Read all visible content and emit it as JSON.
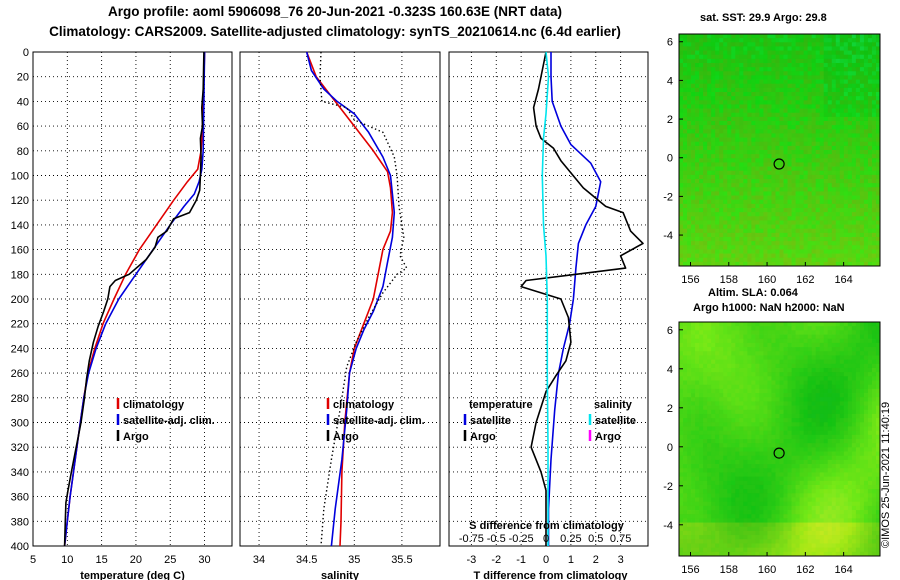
{
  "header": {
    "line1": "Argo profile: aoml 5906098_76 20-Jun-2021 -0.323S 160.63E (NRT data)",
    "line2": "Climatology: CARS2009. Satellite-adjusted climatology: synTS_20210614.nc (6.4d earlier)"
  },
  "credit": "©IMOS 25-Jun-2021 11:40:19",
  "colors": {
    "red": "#e00000",
    "blue": "#0000dd",
    "black": "#000000",
    "cyan": "#00e5ee",
    "magenta": "#ff00ff"
  },
  "depth_ticks": [
    0,
    20,
    40,
    60,
    80,
    100,
    120,
    140,
    160,
    180,
    200,
    220,
    240,
    260,
    280,
    300,
    320,
    340,
    360,
    380,
    400
  ],
  "chart_data": [
    {
      "type": "line",
      "name": "temperature",
      "xlabel": "temperature (deg C)",
      "ylabel": "depth",
      "xlim": [
        5,
        34
      ],
      "ylim": [
        400,
        0
      ],
      "xticks": [
        5,
        10,
        15,
        20,
        25,
        30
      ],
      "legend": [
        "climatology",
        "satellite-adj. clim.",
        "Argo"
      ],
      "series": [
        {
          "name": "climatology",
          "color": "red",
          "points": [
            [
              30,
              0
            ],
            [
              29.9,
              20
            ],
            [
              29.8,
              40
            ],
            [
              29.7,
              60
            ],
            [
              29.5,
              80
            ],
            [
              29.0,
              95
            ],
            [
              27.5,
              105
            ],
            [
              25.5,
              120
            ],
            [
              23.0,
              140
            ],
            [
              20.5,
              160
            ],
            [
              18.5,
              180
            ],
            [
              16.8,
              200
            ],
            [
              15.2,
              220
            ],
            [
              14.0,
              240
            ],
            [
              13.0,
              260
            ],
            [
              12.4,
              280
            ],
            [
              11.9,
              300
            ],
            [
              11.4,
              320
            ],
            [
              10.9,
              340
            ],
            [
              10.4,
              360
            ],
            [
              10.0,
              380
            ],
            [
              9.6,
              400
            ]
          ]
        },
        {
          "name": "satellite-adj. clim.",
          "color": "blue",
          "points": [
            [
              30,
              0
            ],
            [
              29.95,
              20
            ],
            [
              29.9,
              40
            ],
            [
              29.85,
              60
            ],
            [
              29.8,
              80
            ],
            [
              29.6,
              95
            ],
            [
              29.2,
              105
            ],
            [
              28.5,
              115
            ],
            [
              27.0,
              125
            ],
            [
              25.0,
              140
            ],
            [
              22.5,
              160
            ],
            [
              20.0,
              180
            ],
            [
              17.5,
              200
            ],
            [
              15.6,
              220
            ],
            [
              14.2,
              240
            ],
            [
              13.1,
              260
            ],
            [
              12.4,
              280
            ],
            [
              11.9,
              300
            ],
            [
              11.4,
              320
            ],
            [
              10.9,
              340
            ],
            [
              10.4,
              360
            ],
            [
              10.0,
              380
            ],
            [
              9.6,
              400
            ]
          ]
        },
        {
          "name": "Argo",
          "color": "black",
          "points": [
            [
              29.9,
              0
            ],
            [
              29.8,
              30
            ],
            [
              29.6,
              45
            ],
            [
              29.7,
              60
            ],
            [
              29.4,
              70
            ],
            [
              29.5,
              85
            ],
            [
              29.4,
              100
            ],
            [
              29.3,
              112
            ],
            [
              28.8,
              120
            ],
            [
              27.8,
              130
            ],
            [
              25.5,
              135
            ],
            [
              24.5,
              145
            ],
            [
              23.2,
              150
            ],
            [
              22.8,
              158
            ],
            [
              21.5,
              168
            ],
            [
              19.0,
              180
            ],
            [
              17.0,
              185
            ],
            [
              16.2,
              190
            ],
            [
              15.9,
              200
            ],
            [
              15.3,
              210
            ],
            [
              14.5,
              222
            ],
            [
              13.8,
              235
            ],
            [
              13.2,
              250
            ],
            [
              12.8,
              265
            ],
            [
              12.5,
              280
            ],
            [
              12.0,
              300
            ],
            [
              11.3,
              320
            ],
            [
              10.6,
              340
            ],
            [
              10.1,
              355
            ],
            [
              9.8,
              365
            ],
            [
              9.7,
              380
            ],
            [
              9.6,
              400
            ]
          ]
        }
      ]
    },
    {
      "type": "line",
      "name": "salinity",
      "xlabel": "salinity",
      "xlim": [
        33.8,
        35.9
      ],
      "ylim": [
        400,
        0
      ],
      "xticks": [
        34,
        34.5,
        35,
        35.5
      ],
      "legend": [
        "climatology",
        "satellite-adj. clim.",
        "Argo"
      ],
      "series": [
        {
          "name": "climatology",
          "color": "red",
          "points": [
            [
              34.5,
              0
            ],
            [
              34.6,
              20
            ],
            [
              34.8,
              40
            ],
            [
              35.0,
              60
            ],
            [
              35.2,
              80
            ],
            [
              35.35,
              97
            ],
            [
              35.38,
              110
            ],
            [
              35.4,
              130
            ],
            [
              35.38,
              145
            ],
            [
              35.3,
              160
            ],
            [
              35.25,
              180
            ],
            [
              35.2,
              200
            ],
            [
              35.1,
              220
            ],
            [
              35.0,
              240
            ],
            [
              34.95,
              260
            ],
            [
              34.9,
              300
            ],
            [
              34.87,
              340
            ],
            [
              34.86,
              380
            ],
            [
              34.85,
              400
            ]
          ]
        },
        {
          "name": "satellite-adj. clim.",
          "color": "blue",
          "points": [
            [
              34.5,
              0
            ],
            [
              34.55,
              15
            ],
            [
              34.68,
              30
            ],
            [
              34.82,
              40
            ],
            [
              35.0,
              50
            ],
            [
              35.15,
              65
            ],
            [
              35.3,
              85
            ],
            [
              35.38,
              100
            ],
            [
              35.4,
              115
            ],
            [
              35.42,
              130
            ],
            [
              35.4,
              150
            ],
            [
              35.35,
              170
            ],
            [
              35.3,
              190
            ],
            [
              35.2,
              210
            ],
            [
              35.1,
              225
            ],
            [
              35.02,
              240
            ],
            [
              34.95,
              260
            ],
            [
              34.92,
              290
            ],
            [
              34.87,
              330
            ],
            [
              34.8,
              370
            ],
            [
              34.76,
              400
            ]
          ]
        },
        {
          "name": "Argo",
          "color": "black",
          "dotted": true,
          "points": [
            [
              34.65,
              0
            ],
            [
              34.64,
              20
            ],
            [
              34.66,
              40
            ],
            [
              34.92,
              45
            ],
            [
              35.0,
              55
            ],
            [
              35.3,
              65
            ],
            [
              35.42,
              85
            ],
            [
              35.45,
              100
            ],
            [
              35.47,
              125
            ],
            [
              35.52,
              150
            ],
            [
              35.48,
              165
            ],
            [
              35.55,
              175
            ],
            [
              35.45,
              180
            ],
            [
              35.3,
              195
            ],
            [
              35.15,
              215
            ],
            [
              35.02,
              235
            ],
            [
              34.92,
              255
            ],
            [
              34.85,
              290
            ],
            [
              34.76,
              330
            ],
            [
              34.68,
              370
            ],
            [
              34.65,
              400
            ]
          ]
        }
      ]
    },
    {
      "type": "line",
      "name": "differences",
      "xlabel": "T difference from climatology",
      "xlabel_top": "S difference from climatology",
      "xlim": [
        -3.9,
        4.1
      ],
      "ylim": [
        400,
        0
      ],
      "xticks": [
        "-3",
        "-2",
        "-1",
        "0",
        "1",
        "2",
        "3"
      ],
      "xticks_top": [
        "-0.75",
        "-0.5",
        "-0.25",
        "0",
        "0.25",
        "0.5",
        "0.75"
      ],
      "legend_temperature": {
        "heading": "temperature",
        "items": [
          "satellite",
          "Argo"
        ]
      },
      "legend_salinity": {
        "heading": "salinity",
        "items": [
          "satellite",
          "Argo"
        ]
      },
      "series": [
        {
          "name": "T satellite",
          "color": "blue",
          "points": [
            [
              0.2,
              0
            ],
            [
              0.2,
              20
            ],
            [
              0.25,
              40
            ],
            [
              0.6,
              60
            ],
            [
              1.0,
              75
            ],
            [
              1.8,
              90
            ],
            [
              2.2,
              105
            ],
            [
              2.0,
              125
            ],
            [
              1.6,
              140
            ],
            [
              1.3,
              155
            ],
            [
              1.2,
              175
            ],
            [
              1.1,
              200
            ],
            [
              0.95,
              220
            ],
            [
              0.7,
              240
            ],
            [
              0.5,
              260
            ],
            [
              0.35,
              290
            ],
            [
              0.2,
              330
            ],
            [
              0.1,
              370
            ],
            [
              0.1,
              400
            ]
          ]
        },
        {
          "name": "T Argo",
          "color": "black",
          "points": [
            [
              0,
              0
            ],
            [
              -0.3,
              30
            ],
            [
              -0.5,
              45
            ],
            [
              -0.4,
              60
            ],
            [
              -0.2,
              70
            ],
            [
              0.3,
              78
            ],
            [
              0.6,
              88
            ],
            [
              1.5,
              110
            ],
            [
              2.4,
              125
            ],
            [
              3.1,
              130
            ],
            [
              3.4,
              145
            ],
            [
              3.9,
              155
            ],
            [
              3.0,
              165
            ],
            [
              3.2,
              175
            ],
            [
              1.2,
              180
            ],
            [
              -0.8,
              185
            ],
            [
              -1.0,
              190
            ],
            [
              0.6,
              200
            ],
            [
              0.9,
              215
            ],
            [
              1.0,
              235
            ],
            [
              0.8,
              250
            ],
            [
              0.4,
              262
            ],
            [
              0.0,
              275
            ],
            [
              -0.4,
              300
            ],
            [
              -0.6,
              320
            ],
            [
              -0.2,
              340
            ],
            [
              0.0,
              355
            ],
            [
              0.0,
              400
            ]
          ]
        },
        {
          "name": "S satellite",
          "color": "cyan",
          "points": [
            [
              0,
              0
            ],
            [
              0.1,
              20
            ],
            [
              0.0,
              50
            ],
            [
              -0.1,
              70
            ],
            [
              -0.15,
              100
            ],
            [
              -0.1,
              140
            ],
            [
              0.0,
              165
            ],
            [
              0.05,
              200
            ],
            [
              0.05,
              260
            ],
            [
              0.08,
              320
            ],
            [
              0.08,
              400
            ]
          ]
        }
      ]
    }
  ],
  "maps": [
    {
      "name": "sst",
      "title": "sat. SST: 29.9 Argo: 29.8",
      "xticks": [
        "156",
        "158",
        "160",
        "162",
        "164"
      ],
      "yticks": [
        "6",
        "4",
        "2",
        "0",
        "-2",
        "-4"
      ]
    },
    {
      "name": "sla",
      "title": "Altim. SLA: 0.064",
      "subtitle": "Argo h1000: NaN h2000: NaN",
      "xticks": [
        "156",
        "158",
        "160",
        "162",
        "164"
      ],
      "yticks": [
        "6",
        "4",
        "2",
        "0",
        "-2",
        "-4"
      ]
    }
  ]
}
